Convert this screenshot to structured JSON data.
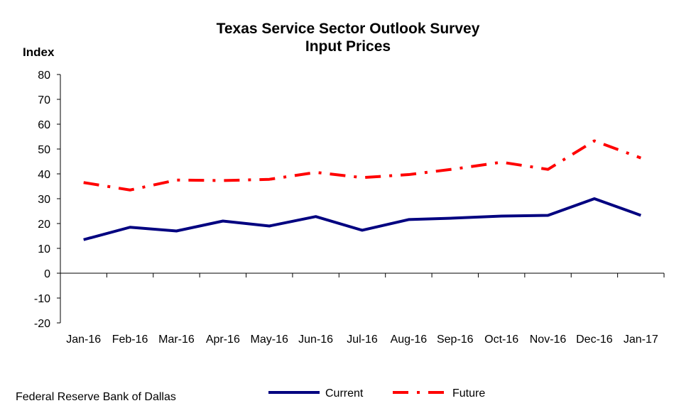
{
  "chart_data": {
    "type": "line",
    "title": "Texas Service Sector Outlook Survey",
    "subtitle": "Input Prices",
    "ylabel": "Index",
    "xlabel": "",
    "ylim": [
      -20,
      80
    ],
    "yticks": [
      80,
      70,
      60,
      50,
      40,
      30,
      20,
      10,
      0,
      -10,
      -20
    ],
    "categories": [
      "Jan-16",
      "Feb-16",
      "Mar-16",
      "Apr-16",
      "May-16",
      "Jun-16",
      "Jul-16",
      "Aug-16",
      "Sep-16",
      "Oct-16",
      "Nov-16",
      "Dec-16",
      "Jan-17"
    ],
    "series": [
      {
        "name": "Current",
        "color": "#000080",
        "style": "solid",
        "values": [
          13.5,
          18.5,
          17.0,
          21.0,
          19.0,
          22.8,
          17.3,
          21.6,
          22.2,
          23.0,
          23.3,
          30.0,
          23.3
        ]
      },
      {
        "name": "Future",
        "color": "#ff0000",
        "style": "dash-dot",
        "values": [
          36.5,
          33.5,
          37.5,
          37.3,
          37.8,
          40.6,
          38.5,
          39.7,
          42.0,
          44.7,
          41.8,
          53.3,
          46.4
        ]
      }
    ],
    "grid": false,
    "legend": "bottom"
  },
  "source": "Federal Reserve Bank of Dallas"
}
